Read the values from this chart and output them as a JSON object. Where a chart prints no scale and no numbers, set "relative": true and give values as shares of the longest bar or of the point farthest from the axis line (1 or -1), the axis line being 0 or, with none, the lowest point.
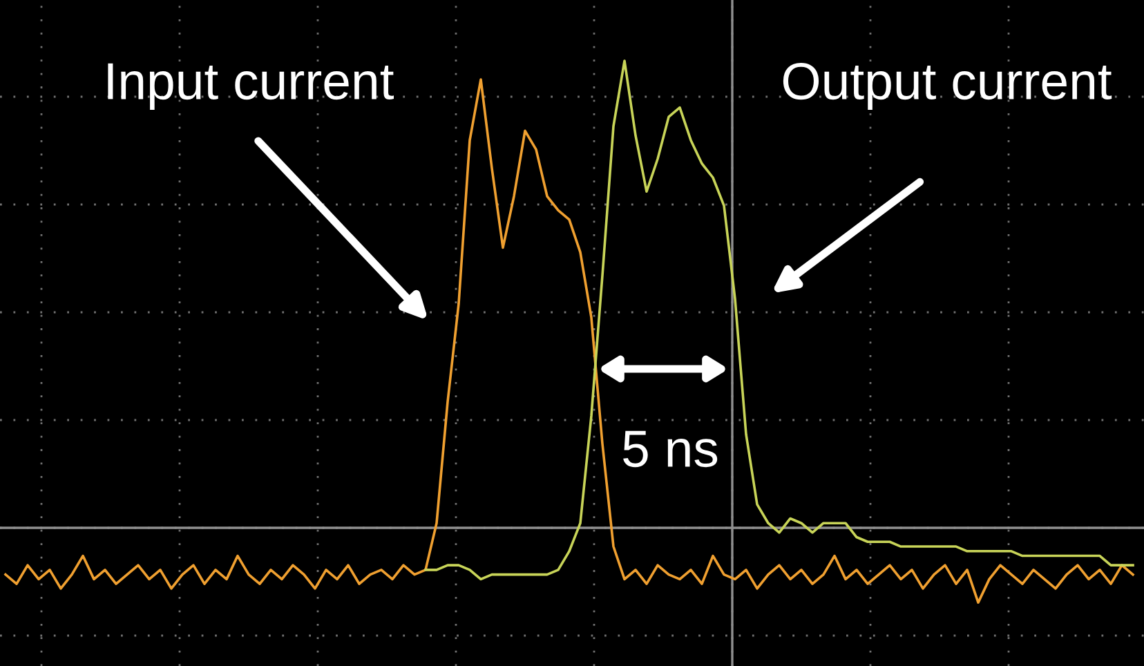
{
  "chart_data": {
    "type": "line",
    "relative": true,
    "grid": true,
    "legend": false,
    "marker": "none",
    "line_style": "solid",
    "categories": [
      null,
      null,
      null,
      null,
      null,
      null,
      null,
      null,
      null,
      null,
      null,
      null,
      null,
      null,
      null,
      null,
      null,
      null,
      null,
      null,
      null,
      null,
      null,
      null,
      null,
      null,
      null,
      null,
      null,
      null,
      null,
      null,
      null,
      null,
      null,
      null,
      null,
      null,
      null,
      null,
      null,
      null,
      null,
      null,
      null,
      null,
      null,
      null,
      null,
      null,
      null,
      null,
      null,
      null,
      null,
      null,
      null,
      null,
      null,
      null,
      null,
      null,
      null,
      null,
      null,
      null,
      null,
      null,
      null,
      null,
      null,
      null,
      null,
      null,
      null,
      null,
      null,
      null,
      null,
      null,
      null,
      null,
      null,
      null,
      null,
      null,
      null,
      null,
      null,
      null,
      null,
      null,
      null,
      null,
      null,
      null,
      null,
      null,
      null,
      null,
      null,
      null,
      null
    ],
    "series": [
      {
        "name": "Input current",
        "color": "#f0a030",
        "values": [
          -0.1,
          -0.12,
          -0.08,
          -0.11,
          -0.09,
          -0.13,
          -0.1,
          -0.06,
          -0.11,
          -0.09,
          -0.12,
          -0.1,
          -0.08,
          -0.11,
          -0.09,
          -0.13,
          -0.1,
          -0.08,
          -0.12,
          -0.09,
          -0.11,
          -0.06,
          -0.1,
          -0.12,
          -0.09,
          -0.11,
          -0.08,
          -0.1,
          -0.13,
          -0.09,
          -0.11,
          -0.08,
          -0.12,
          -0.1,
          -0.09,
          -0.11,
          -0.08,
          -0.1,
          -0.09,
          0.01,
          0.27,
          0.48,
          0.83,
          0.96,
          0.77,
          0.6,
          0.71,
          0.85,
          0.81,
          0.71,
          0.68,
          0.66,
          0.59,
          0.45,
          0.18,
          -0.04,
          -0.11,
          -0.09,
          -0.12,
          -0.08,
          -0.1,
          -0.11,
          -0.09,
          -0.12,
          -0.06,
          -0.1,
          -0.11,
          -0.09,
          -0.13,
          -0.1,
          -0.08,
          -0.11,
          -0.09,
          -0.12,
          -0.1,
          -0.06,
          -0.11,
          -0.09,
          -0.12,
          -0.1,
          -0.08,
          -0.11,
          -0.09,
          -0.13,
          -0.1,
          -0.08,
          -0.12,
          -0.09,
          -0.16,
          -0.11,
          -0.08,
          -0.1,
          -0.12,
          -0.09,
          -0.11,
          -0.13,
          -0.1,
          -0.08,
          -0.11,
          -0.09,
          -0.12,
          -0.08,
          -0.1
        ]
      },
      {
        "name": "Output current",
        "color": "#c8d458",
        "values": [
          null,
          null,
          null,
          null,
          null,
          null,
          null,
          null,
          null,
          null,
          null,
          null,
          null,
          null,
          null,
          null,
          null,
          null,
          null,
          null,
          null,
          null,
          null,
          null,
          null,
          null,
          null,
          null,
          null,
          null,
          null,
          null,
          null,
          null,
          null,
          null,
          null,
          null,
          -0.09,
          -0.09,
          -0.08,
          -0.08,
          -0.09,
          -0.11,
          -0.1,
          -0.1,
          -0.1,
          -0.1,
          -0.1,
          -0.1,
          -0.09,
          -0.05,
          0.01,
          0.24,
          0.54,
          0.86,
          1.0,
          0.84,
          0.72,
          0.79,
          0.88,
          0.9,
          0.83,
          0.78,
          0.75,
          0.69,
          0.49,
          0.2,
          0.05,
          0.01,
          -0.01,
          0.02,
          0.01,
          -0.01,
          0.01,
          0.01,
          0.01,
          -0.02,
          -0.03,
          -0.03,
          -0.03,
          -0.04,
          -0.04,
          -0.04,
          -0.04,
          -0.04,
          -0.04,
          -0.05,
          -0.05,
          -0.05,
          -0.05,
          -0.05,
          -0.06,
          -0.06,
          -0.06,
          -0.06,
          -0.06,
          -0.06,
          -0.06,
          -0.06,
          -0.08,
          -0.08,
          -0.08
        ]
      }
    ],
    "annotations": [
      "5 ns"
    ]
  }
}
